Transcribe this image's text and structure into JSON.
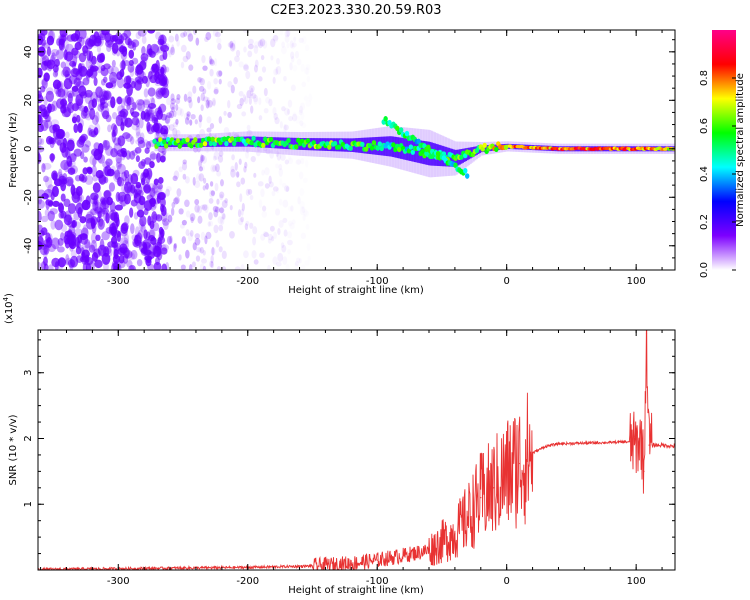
{
  "figure": {
    "title": "C2E3.2023.330.20.59.R03",
    "colors": {
      "trace": "#e83232",
      "scatter": "#6a00ff",
      "axis": "#000000"
    }
  },
  "chart_data": [
    {
      "type": "heatmap",
      "xlabel": "Height of straight line (km)",
      "ylabel": "Frequency (Hz)",
      "xlim": [
        -362,
        130
      ],
      "ylim": [
        -50,
        49
      ],
      "xticks": [
        -300,
        -200,
        -100,
        0,
        100
      ],
      "xtick_labels": [
        "-300",
        "-200",
        "-100",
        "0",
        "100"
      ],
      "yticks": [
        -40,
        -20,
        0,
        20,
        40
      ],
      "ytick_labels": [
        "-40",
        "-20",
        "0",
        "20",
        "40"
      ],
      "colorbar": {
        "label": "Normalized spectral amplitude",
        "range": [
          0,
          1
        ],
        "ticks": [
          0.0,
          0.2,
          0.4,
          0.6,
          0.8
        ],
        "tick_labels": [
          "0.0",
          "0.2",
          "0.4",
          "0.6",
          "0.8"
        ],
        "colormap": [
          "#ffffff",
          "#7d00ff",
          "#0000ff",
          "#00ffff",
          "#00ff00",
          "#ffff00",
          "#ff0000",
          "#ff0088"
        ]
      },
      "noise_region": {
        "x_dense": [
          -362,
          -263
        ],
        "x_sparse": [
          -263,
          -150
        ],
        "amplitude": 0.15
      },
      "signal_track": [
        {
          "x": -272,
          "freq": 2.5,
          "spread": 5,
          "amp": 0.55
        },
        {
          "x": -240,
          "freq": 2.5,
          "spread": 5,
          "amp": 0.6
        },
        {
          "x": -200,
          "freq": 3,
          "spread": 6,
          "amp": 0.55
        },
        {
          "x": -160,
          "freq": 2,
          "spread": 7,
          "amp": 0.6
        },
        {
          "x": -120,
          "freq": 1.5,
          "spread": 8,
          "amp": 0.55
        },
        {
          "x": -90,
          "freq": 1,
          "spread": 12,
          "amp": 0.5
        },
        {
          "x": -60,
          "freq": -2,
          "spread": 14,
          "amp": 0.5
        },
        {
          "x": -40,
          "freq": -4,
          "spread": 10,
          "amp": 0.55
        },
        {
          "x": -20,
          "freq": 0,
          "spread": 4,
          "amp": 0.6
        },
        {
          "x": 0,
          "freq": 1,
          "spread": 3,
          "amp": 0.75
        },
        {
          "x": 40,
          "freq": 0,
          "spread": 3,
          "amp": 0.8
        },
        {
          "x": 100,
          "freq": 0,
          "spread": 3,
          "amp": 0.8
        },
        {
          "x": 130,
          "freq": 0,
          "spread": 3,
          "amp": 0.7
        }
      ]
    },
    {
      "type": "line",
      "xlabel": "Height of straight line (km)",
      "ylabel": "SNR (10 * v/v)",
      "yscale_label": "(x10",
      "yscale_exponent": "4",
      "yscale_suffix": ")",
      "xlim": [
        -362,
        130
      ],
      "ylim": [
        0,
        3.65
      ],
      "xticks": [
        -300,
        -200,
        -100,
        0,
        100
      ],
      "xtick_labels": [
        "-300",
        "-200",
        "-100",
        "0",
        "100"
      ],
      "yticks": [
        1,
        2,
        3
      ],
      "ytick_labels": [
        "1",
        "2",
        "3"
      ],
      "series": [
        {
          "x": [
            -362,
            -300,
            -200,
            -150,
            -120,
            -100,
            -80,
            -60,
            -40,
            -30,
            -20,
            -10,
            0,
            10,
            20,
            30,
            40,
            60,
            80,
            95,
            100,
            104,
            106,
            108,
            110,
            120,
            130
          ],
          "y": [
            0.01,
            0.02,
            0.04,
            0.06,
            0.1,
            0.15,
            0.22,
            0.3,
            0.55,
            0.8,
            1.1,
            1.25,
            1.45,
            1.62,
            1.78,
            1.88,
            1.92,
            1.93,
            1.94,
            1.95,
            1.9,
            2.0,
            1.5,
            3.6,
            1.9,
            1.9,
            1.88
          ]
        }
      ]
    }
  ]
}
